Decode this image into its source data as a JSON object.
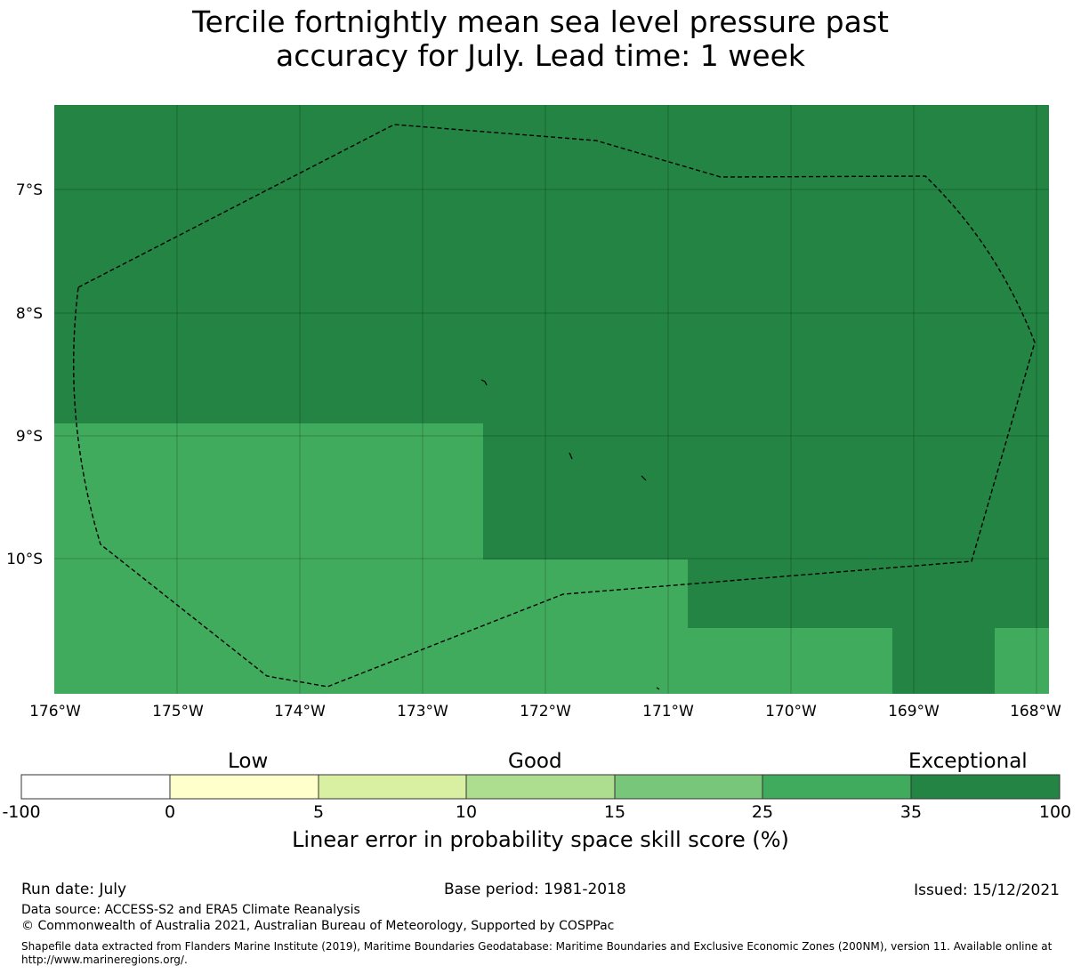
{
  "title": {
    "line1": "Tercile fortnightly mean sea level pressure past",
    "line2": "accuracy for July. Lead time: 1 week"
  },
  "map": {
    "lat_labels": [
      "7°S",
      "8°S",
      "9°S",
      "10°S"
    ],
    "lon_labels": [
      "176°W",
      "175°W",
      "174°W",
      "173°W",
      "172°W",
      "171°W",
      "170°W",
      "169°W",
      "168°W"
    ],
    "colors": {
      "category_25_35": "#41ab5d",
      "category_35_100": "#238443",
      "boundary": "#000000"
    }
  },
  "colorbar": {
    "category_labels": [
      "Low",
      "Good",
      "Exceptional"
    ],
    "ticks": [
      "-100",
      "0",
      "5",
      "10",
      "15",
      "25",
      "35",
      "100"
    ],
    "colors": [
      "#ffffff",
      "#ffffcc",
      "#d9f0a3",
      "#addd8e",
      "#78c679",
      "#41ab5d",
      "#238443"
    ],
    "title": "Linear error in probability space skill score (%)"
  },
  "footer": {
    "run_date": "Run date: July",
    "base_period": "Base period: 1981-2018",
    "issued": "Issued: 15/12/2021",
    "data_source": "Data source: ACCESS-S2 and ERA5 Climate Reanalysis",
    "copyright": "© Commonwealth of Australia 2021, Australian Bureau of Meteorology, Supported by COSPPac",
    "shapefile": "Shapefile data extracted from Flanders Marine Institute (2019), Maritime Boundaries Geodatabase: Maritime Boundaries and Exclusive Economic Zones (200NM), version 11. Available online at http://www.marineregions.org/."
  }
}
